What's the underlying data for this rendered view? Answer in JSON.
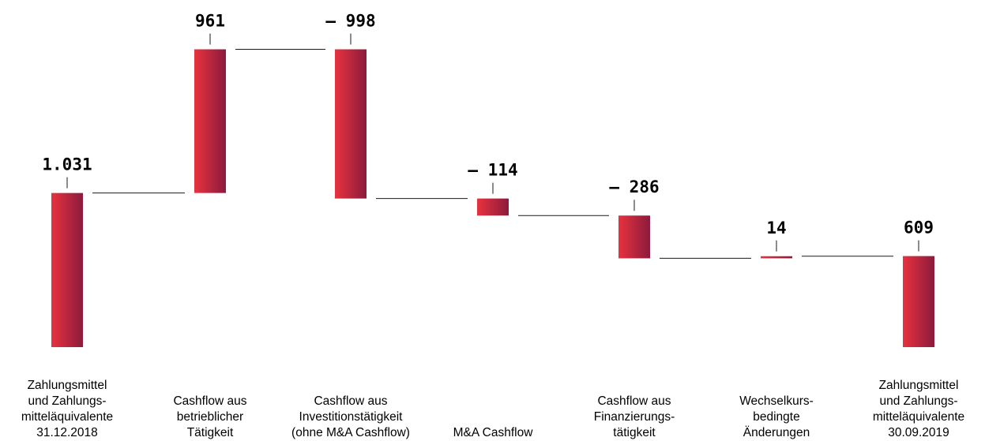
{
  "chart_data": {
    "type": "bar",
    "subtype": "waterfall",
    "categories": [
      [
        "Zahlungsmittel",
        "und Zahlungs-",
        "mitteläquivalente",
        "31.12.2018"
      ],
      [
        "Cashflow aus",
        "betrieblicher",
        "Tätigkeit"
      ],
      [
        "Cashflow aus",
        "Investitionstätigkeit",
        "(ohne M&A Cashflow)"
      ],
      [
        "M&A Cashflow"
      ],
      [
        "Cashflow aus",
        "Finanzierungs-",
        "tätigkeit"
      ],
      [
        "Wechselkurs-",
        "bedingte",
        "Änderungen"
      ],
      [
        "Zahlungsmittel",
        "und Zahlungs-",
        "mitteläquivalente",
        "30.09.2019"
      ]
    ],
    "values": [
      1031,
      961,
      -998,
      -114,
      -286,
      14,
      609
    ],
    "value_labels": [
      "1.031",
      "961",
      "– 998",
      "– 114",
      "– 286",
      "14",
      "609"
    ],
    "bar_kind": [
      "total",
      "delta",
      "delta",
      "delta",
      "delta",
      "delta",
      "total"
    ],
    "ylim": [
      0,
      2100
    ],
    "grid": false,
    "legend": "none",
    "colors": {
      "bar_left": "#e8323f",
      "bar_right": "#8a1b3c",
      "connector": "#1a1a1a"
    }
  }
}
